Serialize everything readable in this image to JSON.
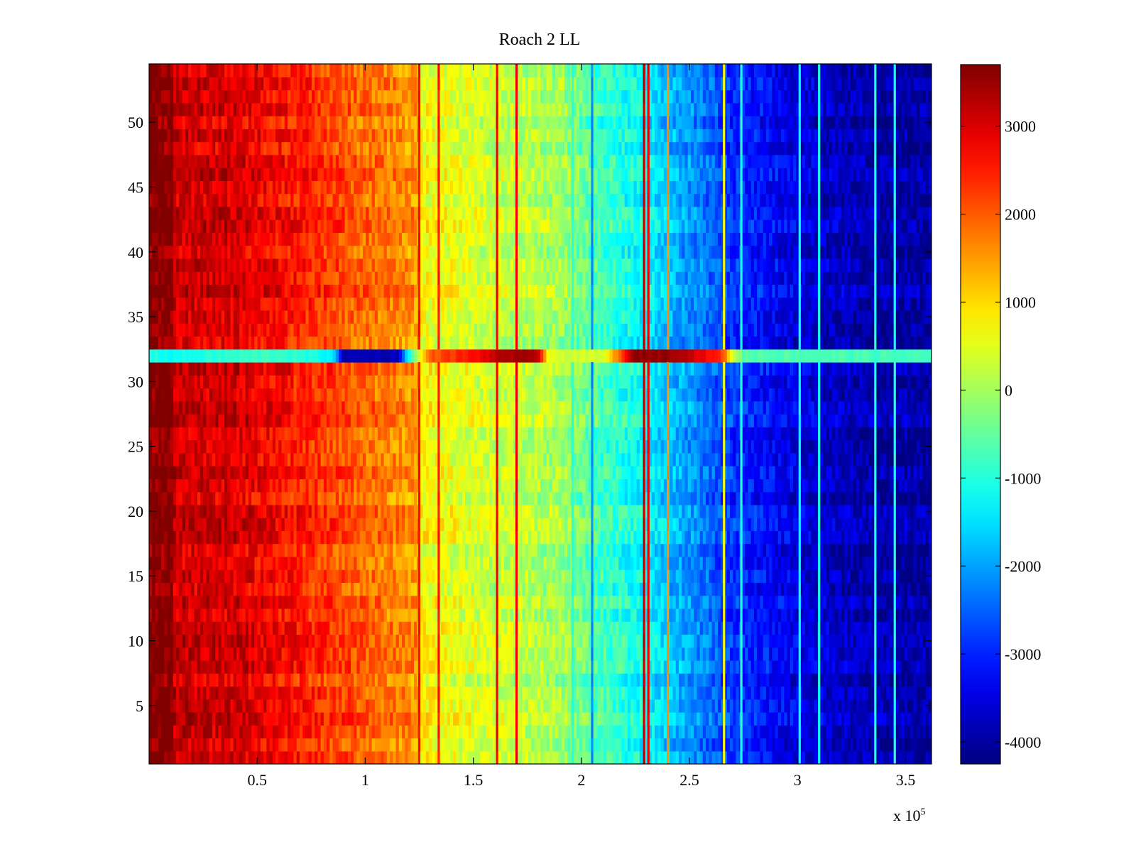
{
  "chart_data": {
    "type": "heatmap",
    "title": "Roach 2 LL",
    "xlabel": "",
    "ylabel": "",
    "x_multiplier_base": "x 10",
    "x_multiplier_exponent": "5",
    "xlim": [
      0,
      362000
    ],
    "ylim": [
      0.5,
      54.5
    ],
    "x_ticks": [
      0.5,
      1,
      1.5,
      2,
      2.5,
      3,
      3.5
    ],
    "x_tick_labels": [
      "0.5",
      "1",
      "1.5",
      "2",
      "2.5",
      "3",
      "3.5"
    ],
    "y_ticks": [
      5,
      10,
      15,
      20,
      25,
      30,
      35,
      40,
      45,
      50
    ],
    "y_tick_labels": [
      "5",
      "10",
      "15",
      "20",
      "25",
      "30",
      "35",
      "40",
      "45",
      "50"
    ],
    "rows": 54,
    "colorbar": {
      "colormap": "jet",
      "clim": [
        -4250,
        3700
      ],
      "ticks": [
        3000,
        2000,
        1000,
        0,
        -1000,
        -2000,
        -3000,
        -4000
      ],
      "tick_labels": [
        "3000",
        "2000",
        "1000",
        "0",
        "-1000",
        "-2000",
        "-3000",
        "-4000"
      ]
    },
    "baseline_profile": {
      "x": [
        0,
        11000,
        12000,
        40000,
        70000,
        100000,
        125000,
        126000,
        160000,
        190000,
        210000,
        230000,
        250000,
        270000,
        300000,
        330000,
        362000
      ],
      "values": [
        3700,
        3700,
        3100,
        3000,
        2500,
        1900,
        1500,
        700,
        300,
        0,
        -800,
        -1300,
        -2100,
        -2900,
        -3500,
        -3900,
        -4000
      ]
    },
    "vertical_streaks": [
      {
        "x": 125000,
        "value": 2600
      },
      {
        "x": 134000,
        "value": 2500
      },
      {
        "x": 161000,
        "value": 2800
      },
      {
        "x": 170000,
        "value": 2800
      },
      {
        "x": 196000,
        "value": -900
      },
      {
        "x": 205000,
        "value": -2200
      },
      {
        "x": 229000,
        "value": 3200
      },
      {
        "x": 231000,
        "value": 2800
      },
      {
        "x": 240000,
        "value": 1600
      },
      {
        "x": 266000,
        "value": 700
      },
      {
        "x": 274000,
        "value": -1000
      },
      {
        "x": 301000,
        "value": -1200
      },
      {
        "x": 310000,
        "value": -1100
      },
      {
        "x": 336000,
        "value": -1000
      },
      {
        "x": 345000,
        "value": -1000
      }
    ],
    "anomalous_row": {
      "row": 32,
      "profile_x": [
        0,
        10000,
        40000,
        60000,
        85000,
        90000,
        115000,
        120000,
        130000,
        150000,
        165000,
        180000,
        185000,
        210000,
        225000,
        245000,
        265000,
        270000,
        275000,
        362000
      ],
      "profile_values": [
        -1000,
        -1200,
        -900,
        -800,
        -1300,
        -3900,
        -3800,
        -1200,
        2000,
        2600,
        3400,
        3300,
        400,
        300,
        3600,
        3500,
        2300,
        500,
        -600,
        -800
      ]
    }
  }
}
